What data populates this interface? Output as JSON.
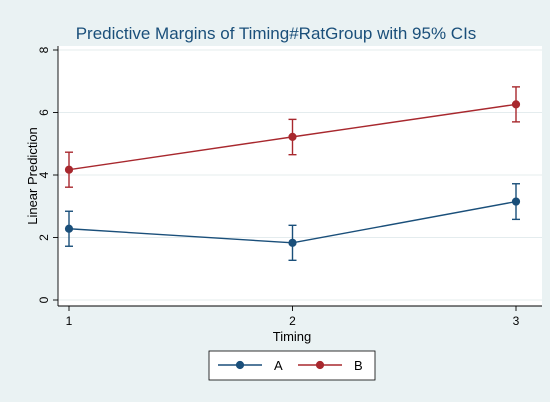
{
  "chart_data": {
    "type": "line",
    "title": "Predictive Margins of Timing#RatGroup with 95% CIs",
    "xlabel": "Timing",
    "ylabel": "Linear Prediction",
    "x": [
      1,
      2,
      3
    ],
    "x_tick_labels": [
      "1",
      "2",
      "3"
    ],
    "y_ticks": [
      0,
      2,
      4,
      6,
      8
    ],
    "y_tick_labels": [
      "0",
      "2",
      "4",
      "6",
      "8"
    ],
    "xlim": [
      1,
      3
    ],
    "ylim": [
      0,
      8
    ],
    "grid": "horizontal",
    "legend_position": "bottom",
    "series": [
      {
        "name": "A",
        "color": "#1a4f7a",
        "values": [
          2.28,
          1.83,
          3.15
        ],
        "ci_low": [
          1.72,
          1.27,
          2.58
        ],
        "ci_high": [
          2.84,
          2.39,
          3.72
        ]
      },
      {
        "name": "B",
        "color": "#a8282e",
        "values": [
          4.17,
          5.22,
          6.26
        ],
        "ci_low": [
          3.61,
          4.65,
          5.7
        ],
        "ci_high": [
          4.73,
          5.78,
          6.82
        ]
      }
    ]
  }
}
